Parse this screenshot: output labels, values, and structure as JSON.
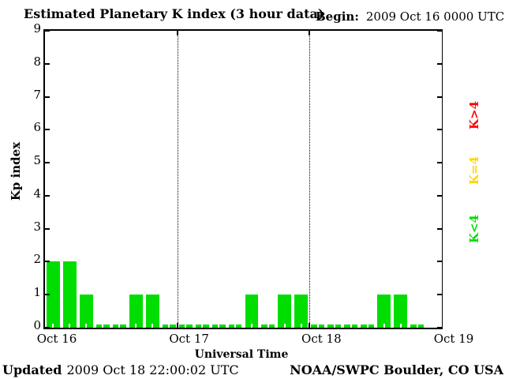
{
  "header": {
    "title": "Estimated Planetary K index (3 hour data)",
    "begin_label": "Begin:",
    "begin_value": "2009 Oct 16 0000 UTC"
  },
  "chart_data": {
    "type": "bar",
    "title": "Estimated Planetary K index (3 hour data)",
    "xlabel": "Universal Time",
    "ylabel": "Kp index",
    "ylim": [
      0,
      9
    ],
    "yticks": [
      0,
      1,
      2,
      3,
      4,
      5,
      6,
      7,
      8,
      9
    ],
    "x_tick_labels": [
      "Oct 16",
      "Oct 17",
      "Oct 18",
      "Oct 19"
    ],
    "slots_per_day": 8,
    "hours_per_slot": 3,
    "total_slots_axis": 24,
    "bar_values": [
      2,
      2,
      1,
      0,
      0,
      1,
      1,
      0,
      0,
      0,
      0,
      0,
      1,
      0,
      1,
      1,
      0,
      0,
      0,
      0,
      1,
      1,
      0
    ],
    "day_separator_slots": [
      8,
      16
    ],
    "bar_color": "#00dd00",
    "grid": "dotted vertical lines at day boundaries",
    "legend_position": "right, rotated 90 degrees",
    "legend": [
      {
        "text": "K>4",
        "color": "#ff0000"
      },
      {
        "text": "K=4",
        "color": "#ffd700"
      },
      {
        "text": "K<4",
        "color": "#00dd00"
      }
    ]
  },
  "footer": {
    "updated_label": "Updated",
    "updated_value": "2009 Oct 18 22:00:02 UTC",
    "credit": "NOAA/SWPC Boulder, CO USA"
  }
}
